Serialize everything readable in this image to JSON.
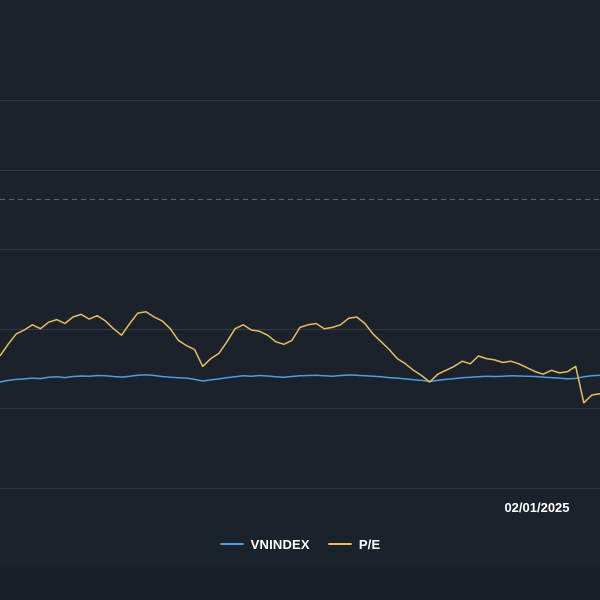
{
  "chart_data": {
    "type": "line",
    "x_ticks": [
      "02/01/2025"
    ],
    "grid": true,
    "legend_position": "bottom",
    "series": [
      {
        "name": "VNINDEX",
        "color": "#4a9fe0",
        "values": [
          1.0,
          1.06,
          1.1,
          1.12,
          1.15,
          1.13,
          1.18,
          1.2,
          1.17,
          1.21,
          1.23,
          1.22,
          1.25,
          1.24,
          1.21,
          1.19,
          1.22,
          1.26,
          1.28,
          1.25,
          1.21,
          1.18,
          1.16,
          1.15,
          1.1,
          1.04,
          1.08,
          1.12,
          1.17,
          1.2,
          1.24,
          1.22,
          1.25,
          1.23,
          1.2,
          1.18,
          1.21,
          1.24,
          1.25,
          1.26,
          1.24,
          1.22,
          1.25,
          1.27,
          1.26,
          1.24,
          1.22,
          1.2,
          1.17,
          1.15,
          1.12,
          1.09,
          1.06,
          1.02,
          1.06,
          1.1,
          1.13,
          1.16,
          1.18,
          1.2,
          1.22,
          1.21,
          1.22,
          1.24,
          1.23,
          1.22,
          1.21,
          1.19,
          1.17,
          1.15,
          1.12,
          1.14,
          1.2,
          1.24,
          1.26
        ]
      },
      {
        "name": "P/E",
        "color": "#e6bd5f",
        "values": [
          2.0,
          2.45,
          2.85,
          3.0,
          3.2,
          3.05,
          3.3,
          3.4,
          3.25,
          3.5,
          3.6,
          3.42,
          3.55,
          3.35,
          3.05,
          2.8,
          3.25,
          3.65,
          3.7,
          3.5,
          3.35,
          3.05,
          2.6,
          2.4,
          2.25,
          1.6,
          1.9,
          2.1,
          2.55,
          3.05,
          3.2,
          3.0,
          2.95,
          2.8,
          2.55,
          2.45,
          2.6,
          3.1,
          3.2,
          3.25,
          3.05,
          3.1,
          3.2,
          3.45,
          3.5,
          3.25,
          2.85,
          2.55,
          2.25,
          1.9,
          1.7,
          1.45,
          1.25,
          1.0,
          1.3,
          1.45,
          1.6,
          1.8,
          1.7,
          2.0,
          1.9,
          1.85,
          1.75,
          1.8,
          1.7,
          1.55,
          1.4,
          1.3,
          1.45,
          1.35,
          1.4,
          1.6,
          0.2,
          0.5,
          0.55
        ]
      }
    ]
  }
}
